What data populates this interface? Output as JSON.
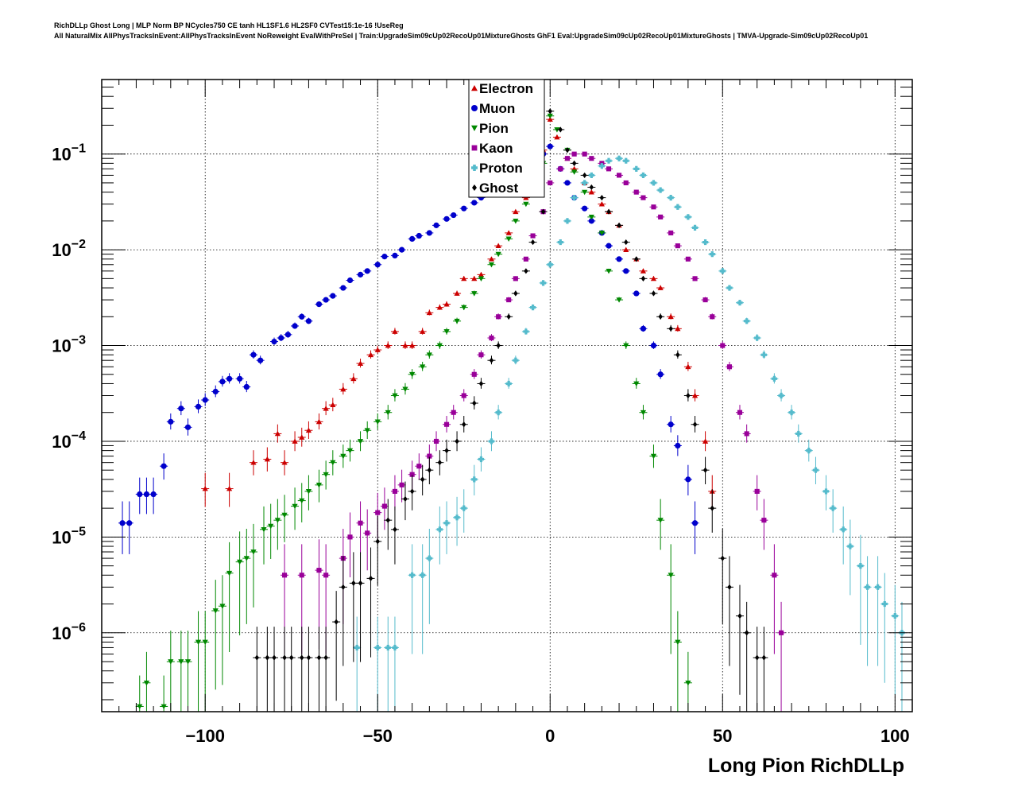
{
  "header": {
    "title_line1": "RichDLLp Ghost Long | MLP Norm BP NCycles750 CE tanh HL1SF1.6 HL2SF0 CVTest15:1e-16 !UseReg",
    "title_line2": "All NaturalMix AllPhysTracksInEvent:AllPhysTracksInEvent NoReweight EvalWithPreSel | Train:UpgradeSim09cUp02RecoUp01MixtureGhosts GhF1 Eval:UpgradeSim09cUp02RecoUp01MixtureGhosts | TMVA-Upgrade-Sim09cUp02RecoUp01"
  },
  "chart_data": {
    "type": "scatter",
    "xlabel": "Long Pion RichDLLp",
    "ylabel": "",
    "xlim": [
      -130,
      105
    ],
    "ylim": [
      1.5e-07,
      0.6
    ],
    "yscale": "log",
    "grid": true,
    "legend_position": "top-center",
    "x_ticks": [
      -100,
      -50,
      0,
      50,
      100
    ],
    "x_tick_labels": [
      "−100",
      "−50",
      "0",
      "50",
      "100"
    ],
    "y_ticks": [
      1e-06,
      1e-05,
      0.0001,
      0.001,
      0.01,
      0.1
    ],
    "y_tick_labels": [
      {
        "base": "10",
        "exp": "−6"
      },
      {
        "base": "10",
        "exp": "−5"
      },
      {
        "base": "10",
        "exp": "−4"
      },
      {
        "base": "10",
        "exp": "−3"
      },
      {
        "base": "10",
        "exp": "−2"
      },
      {
        "base": "10",
        "exp": "−1"
      }
    ],
    "series": [
      {
        "name": "Electron",
        "color": "#cc0000",
        "marker": "triangle-up",
        "x": [
          -100,
          -93,
          -86,
          -82,
          -79,
          -77,
          -74,
          -72,
          -70,
          -67,
          -65,
          -63,
          -60,
          -57,
          -55,
          -52,
          -50,
          -47,
          -45,
          -42,
          -40,
          -37,
          -35,
          -32,
          -30,
          -27,
          -25,
          -22,
          -20,
          -17,
          -15,
          -12,
          -10,
          -7,
          -5,
          -2,
          0,
          2,
          5,
          7,
          10,
          12,
          15,
          17,
          20,
          22,
          25,
          27,
          30,
          32,
          35,
          37,
          40,
          42,
          45,
          47
        ],
        "y": [
          3.2e-05,
          3.2e-05,
          6e-05,
          6.5e-05,
          0.00012,
          6e-05,
          0.0001,
          0.00011,
          0.00013,
          0.00016,
          0.00022,
          0.00024,
          0.00035,
          0.00045,
          0.00065,
          0.0008,
          0.0009,
          0.001,
          0.0014,
          0.001,
          0.001,
          0.0014,
          0.0022,
          0.0025,
          0.0027,
          0.0035,
          0.005,
          0.005,
          0.0055,
          0.008,
          0.011,
          0.015,
          0.025,
          0.035,
          0.06,
          0.11,
          0.23,
          0.15,
          0.09,
          0.07,
          0.05,
          0.04,
          0.03,
          0.025,
          0.018,
          0.01,
          0.008,
          0.006,
          0.005,
          0.004,
          0.002,
          0.0015,
          0.0006,
          0.0003,
          0.0001,
          3e-05
        ]
      },
      {
        "name": "Muon",
        "color": "#0000cc",
        "marker": "circle",
        "x": [
          -124,
          -122,
          -119,
          -117,
          -115,
          -112,
          -110,
          -107,
          -105,
          -102,
          -100,
          -97,
          -95,
          -93,
          -90,
          -88,
          -86,
          -84,
          -80,
          -78,
          -76,
          -74,
          -72,
          -70,
          -67,
          -65,
          -63,
          -60,
          -58,
          -55,
          -53,
          -50,
          -48,
          -45,
          -43,
          -40,
          -38,
          -35,
          -33,
          -30,
          -28,
          -25,
          -22,
          -20,
          -17,
          -15,
          -12,
          -10,
          -7,
          -5,
          -2,
          0,
          3,
          5,
          7,
          10,
          12,
          15,
          17,
          20,
          22,
          25,
          27,
          30,
          32,
          35,
          37,
          40,
          42
        ],
        "y": [
          1.4e-05,
          1.4e-05,
          2.8e-05,
          2.8e-05,
          2.8e-05,
          5.5e-05,
          0.00016,
          0.00022,
          0.00014,
          0.00023,
          0.00027,
          0.00033,
          0.00042,
          0.00045,
          0.00045,
          0.00037,
          0.0008,
          0.0007,
          0.0011,
          0.0012,
          0.0013,
          0.0016,
          0.002,
          0.0018,
          0.0027,
          0.003,
          0.0033,
          0.004,
          0.0048,
          0.0055,
          0.006,
          0.007,
          0.0085,
          0.0087,
          0.01,
          0.013,
          0.014,
          0.015,
          0.018,
          0.021,
          0.023,
          0.027,
          0.031,
          0.035,
          0.04,
          0.045,
          0.055,
          0.06,
          0.07,
          0.08,
          0.1,
          0.12,
          0.07,
          0.05,
          0.035,
          0.027,
          0.02,
          0.015,
          0.011,
          0.008,
          0.006,
          0.0035,
          0.0015,
          0.001,
          0.0005,
          0.00015,
          9e-05,
          4e-05,
          1.4e-05
        ]
      },
      {
        "name": "Pion",
        "color": "#008800",
        "marker": "triangle-down",
        "x": [
          -119,
          -117,
          -112,
          -110,
          -107,
          -105,
          -102,
          -100,
          -97,
          -95,
          -93,
          -90,
          -88,
          -86,
          -83,
          -81,
          -79,
          -77,
          -74,
          -72,
          -70,
          -67,
          -65,
          -63,
          -60,
          -58,
          -55,
          -53,
          -50,
          -47,
          -45,
          -42,
          -40,
          -37,
          -35,
          -32,
          -30,
          -27,
          -25,
          -22,
          -20,
          -17,
          -15,
          -12,
          -10,
          -7,
          -5,
          -2,
          0,
          2,
          5,
          7,
          10,
          12,
          15,
          17,
          20,
          22,
          25,
          27,
          30,
          32,
          35,
          37,
          40
        ],
        "y": [
          1.7e-07,
          3e-07,
          1.7e-07,
          5e-07,
          5e-07,
          5e-07,
          8e-07,
          8e-07,
          1.7e-06,
          1.9e-06,
          4.2e-06,
          5.5e-06,
          6e-06,
          7e-06,
          1.2e-05,
          1.3e-05,
          1.5e-05,
          1.7e-05,
          2.1e-05,
          2.4e-05,
          3e-05,
          3.5e-05,
          4.5e-05,
          6e-05,
          7e-05,
          8e-05,
          0.0001,
          0.00013,
          0.00016,
          0.0002,
          0.0003,
          0.00035,
          0.0005,
          0.0006,
          0.0008,
          0.001,
          0.0014,
          0.0018,
          0.0025,
          0.0035,
          0.005,
          0.007,
          0.009,
          0.013,
          0.02,
          0.03,
          0.05,
          0.08,
          0.25,
          0.18,
          0.11,
          0.065,
          0.04,
          0.022,
          0.015,
          0.006,
          0.003,
          0.001,
          0.0004,
          0.0002,
          7e-05,
          1.5e-05,
          4e-06,
          8e-07,
          3e-07
        ]
      },
      {
        "name": "Kaon",
        "color": "#990099",
        "marker": "square",
        "x": [
          -77,
          -72,
          -67,
          -65,
          -60,
          -58,
          -55,
          -53,
          -50,
          -48,
          -45,
          -43,
          -40,
          -38,
          -35,
          -33,
          -30,
          -28,
          -25,
          -22,
          -20,
          -17,
          -15,
          -12,
          -10,
          -7,
          -5,
          -2,
          0,
          3,
          5,
          7,
          10,
          12,
          15,
          17,
          20,
          22,
          25,
          27,
          30,
          32,
          35,
          37,
          40,
          42,
          45,
          47,
          50,
          52,
          55,
          57,
          60,
          62,
          65,
          67
        ],
        "y": [
          4e-06,
          4e-06,
          4.5e-06,
          4e-06,
          6e-06,
          1e-05,
          1.4e-05,
          1.1e-05,
          1.8e-05,
          2.1e-05,
          3e-05,
          3.5e-05,
          4.5e-05,
          5.5e-05,
          7e-05,
          0.0001,
          0.00015,
          0.0002,
          0.0003,
          0.0005,
          0.0008,
          0.0012,
          0.002,
          0.003,
          0.005,
          0.008,
          0.014,
          0.025,
          0.05,
          0.07,
          0.09,
          0.1,
          0.1,
          0.09,
          0.08,
          0.07,
          0.06,
          0.05,
          0.04,
          0.035,
          0.028,
          0.022,
          0.015,
          0.011,
          0.008,
          0.005,
          0.003,
          0.002,
          0.001,
          0.0006,
          0.0002,
          0.00012,
          3e-05,
          1.5e-05,
          4e-06,
          1e-06
        ]
      },
      {
        "name": "Proton",
        "color": "#55bbcc",
        "marker": "cross",
        "x": [
          -56,
          -50,
          -47,
          -45,
          -40,
          -37,
          -35,
          -32,
          -30,
          -27,
          -25,
          -22,
          -20,
          -17,
          -15,
          -12,
          -10,
          -7,
          -5,
          -2,
          0,
          3,
          5,
          7,
          10,
          12,
          15,
          17,
          20,
          22,
          25,
          27,
          30,
          32,
          35,
          37,
          40,
          42,
          45,
          47,
          50,
          52,
          55,
          57,
          60,
          62,
          65,
          67,
          70,
          72,
          75,
          77,
          80,
          82,
          85,
          87,
          90,
          92,
          95,
          97,
          100,
          102
        ],
        "y": [
          7e-07,
          7e-07,
          7e-07,
          7e-07,
          4e-06,
          4e-06,
          6e-06,
          1.2e-05,
          1.4e-05,
          1.6e-05,
          2e-05,
          4e-05,
          6.5e-05,
          0.0001,
          0.0002,
          0.0004,
          0.0007,
          0.0014,
          0.0025,
          0.0045,
          0.007,
          0.012,
          0.02,
          0.035,
          0.05,
          0.06,
          0.075,
          0.085,
          0.09,
          0.085,
          0.07,
          0.06,
          0.05,
          0.042,
          0.035,
          0.028,
          0.022,
          0.017,
          0.012,
          0.009,
          0.006,
          0.004,
          0.0028,
          0.0018,
          0.0012,
          0.0008,
          0.00045,
          0.0003,
          0.0002,
          0.00012,
          8e-05,
          5e-05,
          3e-05,
          2e-05,
          1.2e-05,
          8e-06,
          5e-06,
          3e-06,
          3e-06,
          2e-06,
          1.5e-06,
          1e-06
        ]
      },
      {
        "name": "Ghost",
        "color": "#000000",
        "marker": "diamond",
        "x": [
          -85,
          -82,
          -80,
          -77,
          -75,
          -72,
          -70,
          -67,
          -65,
          -62,
          -60,
          -57,
          -55,
          -52,
          -50,
          -47,
          -45,
          -42,
          -40,
          -37,
          -35,
          -32,
          -30,
          -27,
          -25,
          -22,
          -20,
          -17,
          -15,
          -12,
          -10,
          -7,
          -5,
          -2,
          0,
          3,
          5,
          7,
          10,
          12,
          15,
          17,
          20,
          22,
          25,
          27,
          30,
          32,
          35,
          37,
          40,
          42,
          45,
          47,
          50,
          52,
          55,
          57,
          60,
          62
        ],
        "y": [
          5.5e-07,
          5.5e-07,
          5.5e-07,
          5.5e-07,
          5.5e-07,
          5.5e-07,
          5.5e-07,
          5.5e-07,
          5.5e-07,
          1.3e-06,
          3e-06,
          3.3e-06,
          3.3e-06,
          3.7e-06,
          9e-06,
          1.5e-05,
          1.2e-05,
          2.5e-05,
          3e-05,
          4e-05,
          5e-05,
          6e-05,
          8e-05,
          0.0001,
          0.00015,
          0.00025,
          0.0004,
          0.0007,
          0.001,
          0.002,
          0.0035,
          0.006,
          0.012,
          0.025,
          0.28,
          0.18,
          0.11,
          0.08,
          0.06,
          0.045,
          0.035,
          0.025,
          0.018,
          0.012,
          0.008,
          0.005,
          0.0035,
          0.002,
          0.0015,
          0.0008,
          0.0003,
          0.00015,
          5e-05,
          2e-05,
          6e-06,
          3e-06,
          1.5e-06,
          1e-06,
          5.5e-07,
          5.5e-07
        ]
      }
    ]
  }
}
